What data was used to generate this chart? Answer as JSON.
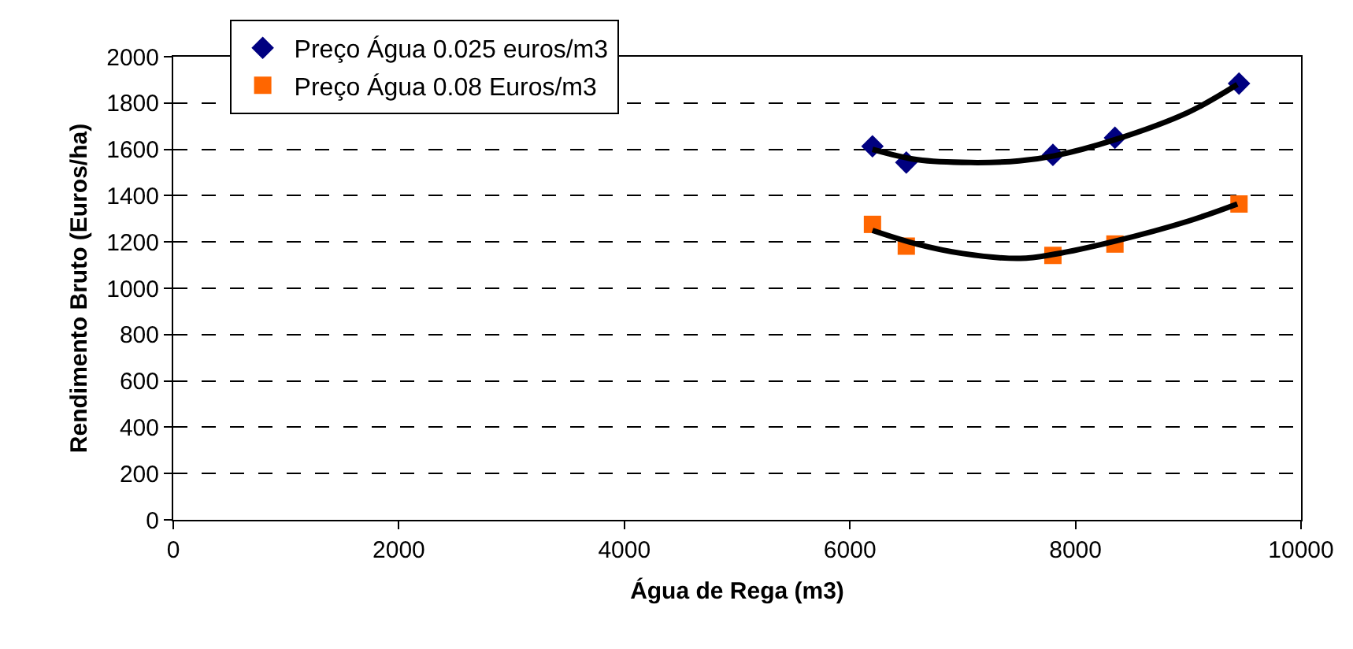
{
  "chart_data": {
    "type": "scatter",
    "xlabel": "Água de Rega (m3)",
    "ylabel": "Rendimento Bruto (Euros/ha)",
    "xlim": [
      0,
      10000
    ],
    "xticks": [
      0,
      2000,
      4000,
      6000,
      8000,
      10000
    ],
    "ylim": [
      0,
      2000
    ],
    "yticks": [
      0,
      200,
      400,
      600,
      800,
      1000,
      1200,
      1400,
      1600,
      1800,
      2000
    ],
    "grid": "y",
    "legend": "top left",
    "series": [
      {
        "name": "Preço Água 0.025 euros/m3",
        "color": "#000080",
        "marker": "diamond",
        "x": [
          6200,
          6500,
          7800,
          8350,
          9450
        ],
        "values": [
          1613,
          1543,
          1576,
          1650,
          1884
        ]
      },
      {
        "name": "Preço Água 0.08 Euros/m3",
        "color": "#ff6600",
        "marker": "square",
        "x": [
          6200,
          6500,
          7800,
          8350,
          9450
        ],
        "values": [
          1276,
          1182,
          1142,
          1191,
          1364
        ]
      },
      {
        "type": "line",
        "color": "#000000",
        "marker": "none",
        "x": [
          6200,
          6600,
          7070,
          7500,
          7812,
          8338,
          9000,
          9435
        ],
        "values": [
          1600,
          1555,
          1543,
          1550,
          1572,
          1640,
          1760,
          1880
        ]
      },
      {
        "type": "line",
        "color": "#000000",
        "marker": "none",
        "x": [
          6200,
          6600,
          7000,
          7510,
          7812,
          8338,
          9000,
          9435
        ],
        "values": [
          1250,
          1190,
          1150,
          1129,
          1147,
          1202,
          1290,
          1364
        ]
      }
    ]
  }
}
